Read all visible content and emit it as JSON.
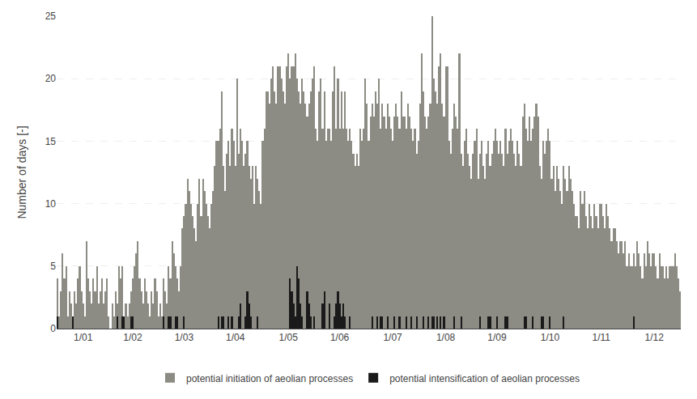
{
  "chart_data": {
    "type": "bar",
    "ylabel": "Number of days [-]",
    "ylim": [
      0,
      25
    ],
    "yticks": [
      0,
      5,
      10,
      15,
      20,
      25
    ],
    "grid": true,
    "legend": "bottom",
    "categories": [
      null,
      null,
      null,
      null,
      null,
      null,
      null,
      null,
      null,
      null,
      null,
      null,
      null,
      null,
      null,
      "1/01",
      null,
      null,
      null,
      null,
      null,
      null,
      null,
      null,
      null,
      null,
      null,
      null,
      null,
      null,
      null,
      null,
      null,
      null,
      null,
      null,
      null,
      null,
      null,
      null,
      null,
      null,
      null,
      null,
      "1/02",
      null,
      null,
      null,
      null,
      null,
      null,
      null,
      null,
      null,
      null,
      null,
      null,
      null,
      null,
      null,
      null,
      null,
      null,
      null,
      null,
      null,
      null,
      null,
      null,
      null,
      null,
      null,
      null,
      null,
      "1/03",
      null,
      null,
      null,
      null,
      null,
      null,
      null,
      null,
      null,
      null,
      null,
      null,
      null,
      null,
      null,
      null,
      null,
      null,
      null,
      null,
      null,
      null,
      null,
      null,
      null,
      null,
      null,
      null,
      null,
      "1/04",
      null,
      null,
      null,
      null,
      null,
      null,
      null,
      null,
      null,
      null,
      null,
      null,
      null,
      null,
      null,
      null,
      null,
      null,
      null,
      null,
      null,
      null,
      null,
      null,
      null,
      null,
      null,
      null,
      null,
      null,
      "1/05",
      null,
      null,
      null,
      null,
      null,
      null,
      null,
      null,
      null,
      null,
      null,
      null,
      null,
      null,
      null,
      null,
      null,
      null,
      null,
      null,
      null,
      null,
      null,
      null,
      null,
      null,
      null,
      null,
      null,
      "1/06",
      null,
      null,
      null,
      null,
      null,
      null,
      null,
      null,
      null,
      null,
      null,
      null,
      null,
      null,
      null,
      null,
      null,
      null,
      null,
      null,
      null,
      null,
      null,
      null,
      null,
      null,
      null,
      null,
      null,
      null,
      "1/07",
      null,
      null,
      null,
      null,
      null,
      null,
      null,
      null,
      null,
      null,
      null,
      null,
      null,
      null,
      null,
      null,
      null,
      null,
      null,
      null,
      null,
      null,
      null,
      null,
      null,
      null,
      null,
      null,
      null,
      null,
      "1/08",
      null,
      null,
      null,
      null,
      null,
      null,
      null,
      null,
      null,
      null,
      null,
      null,
      null,
      null,
      null,
      null,
      null,
      null,
      null,
      null,
      null,
      null,
      null,
      null,
      null,
      null,
      null,
      null,
      null,
      "1/09",
      null,
      null,
      null,
      null,
      null,
      null,
      null,
      null,
      null,
      null,
      null,
      null,
      null,
      null,
      null,
      null,
      null,
      null,
      null,
      null,
      null,
      null,
      null,
      null,
      null,
      null,
      null,
      null,
      null,
      null,
      "1/10",
      null,
      null,
      null,
      null,
      null,
      null,
      null,
      null,
      null,
      null,
      null,
      null,
      null,
      null,
      null,
      null,
      null,
      null,
      null,
      null,
      null,
      null,
      null,
      null,
      null,
      null,
      null,
      null,
      null,
      "1/11",
      null,
      null,
      null,
      null,
      null,
      null,
      null,
      null,
      null,
      null,
      null,
      null,
      null,
      null,
      null,
      null,
      null,
      null,
      null,
      null,
      null,
      null,
      null,
      null,
      null,
      null,
      null,
      null,
      null,
      null,
      "1/12",
      null,
      null,
      null,
      null,
      null,
      null,
      null,
      null,
      null,
      null,
      null,
      null,
      null,
      null,
      null
    ],
    "series": [
      {
        "name": "potential initiation of aeolian processes",
        "color": "#8c8c84",
        "values": [
          4,
          1,
          3,
          6,
          4,
          5,
          1,
          3,
          2,
          1,
          3,
          2,
          4,
          5,
          3,
          2,
          1,
          7,
          4,
          3,
          2,
          4,
          3,
          5,
          2,
          3,
          4,
          2,
          3,
          4,
          1,
          0,
          2,
          1,
          3,
          2,
          5,
          4,
          5,
          1,
          2,
          1,
          2,
          3,
          4,
          5,
          6,
          7,
          4,
          3,
          2,
          4,
          3,
          2,
          1,
          3,
          2,
          4,
          3,
          1,
          2,
          1,
          4,
          3,
          2,
          5,
          4,
          7,
          6,
          5,
          4,
          3,
          5,
          8,
          9,
          10,
          12,
          11,
          10,
          9,
          8,
          7,
          10,
          12,
          9,
          12,
          11,
          10,
          9,
          8,
          10,
          11,
          13,
          15,
          15,
          16,
          19,
          13,
          11,
          14,
          15,
          13,
          16,
          15,
          13,
          20,
          14,
          16,
          15,
          13,
          14,
          15,
          13,
          12,
          13,
          10,
          13,
          12,
          11,
          10,
          15,
          16,
          19,
          19,
          18,
          20,
          21,
          19,
          18,
          21,
          21,
          20,
          19,
          18,
          21,
          22,
          20,
          21,
          21,
          22,
          20,
          19,
          18,
          20,
          19,
          18,
          17,
          18,
          19,
          20,
          21,
          16,
          15,
          19,
          20,
          16,
          19,
          15,
          16,
          16,
          15,
          19,
          21,
          16,
          20,
          16,
          19,
          16,
          19,
          16,
          15,
          16,
          15,
          14,
          13,
          14,
          13,
          16,
          15,
          16,
          20,
          18,
          15,
          17,
          18,
          17,
          19,
          18,
          20,
          16,
          18,
          17,
          16,
          18,
          17,
          16,
          15,
          17,
          18,
          17,
          16,
          19,
          17,
          17,
          16,
          18,
          17,
          16,
          15,
          16,
          14,
          15,
          18,
          22,
          19,
          17,
          16,
          17,
          18,
          25,
          20,
          19,
          18,
          21,
          22,
          18,
          17,
          21,
          21,
          15,
          14,
          16,
          18,
          17,
          16,
          22,
          14,
          13,
          15,
          16,
          14,
          13,
          12,
          14,
          15,
          16,
          12,
          14,
          15,
          13,
          12,
          14,
          15,
          13,
          14,
          15,
          16,
          15,
          14,
          15,
          14,
          13,
          16,
          14,
          15,
          16,
          15,
          14,
          13,
          15,
          14,
          13,
          17,
          18,
          16,
          15,
          17,
          15,
          16,
          17,
          18,
          17,
          13,
          12,
          15,
          14,
          15,
          16,
          15,
          12,
          13,
          11,
          13,
          12,
          11,
          10,
          13,
          12,
          11,
          13,
          12,
          11,
          10,
          9,
          9,
          8,
          11,
          10,
          11,
          9,
          8,
          10,
          9,
          8,
          10,
          9,
          8,
          10,
          10,
          9,
          8,
          10,
          9,
          8,
          7,
          8,
          8,
          7,
          6,
          7,
          7,
          6,
          7,
          5,
          6,
          5,
          5,
          6,
          5,
          7,
          6,
          5,
          4,
          6,
          5,
          7,
          6,
          5,
          6,
          6,
          5,
          4,
          6,
          5,
          5,
          4,
          5,
          4,
          5,
          5,
          5,
          6,
          5,
          4,
          3
        ]
      },
      {
        "name": "potential intensification of aeolian processes",
        "color": "#1a1a1a",
        "values": [
          1,
          0,
          0,
          0,
          0,
          0,
          0,
          0,
          0,
          1,
          0,
          0,
          0,
          0,
          0,
          0,
          0,
          0,
          0,
          0,
          0,
          0,
          0,
          0,
          0,
          0,
          0,
          0,
          0,
          0,
          0,
          0,
          0,
          0,
          0,
          1,
          0,
          0,
          1,
          1,
          0,
          0,
          0,
          1,
          1,
          0,
          0,
          0,
          0,
          0,
          0,
          0,
          0,
          0,
          0,
          0,
          0,
          0,
          0,
          0,
          0,
          0,
          1,
          0,
          0,
          1,
          1,
          0,
          0,
          1,
          1,
          0,
          0,
          0,
          1,
          0,
          0,
          0,
          0,
          0,
          0,
          0,
          0,
          0,
          0,
          0,
          0,
          0,
          0,
          0,
          0,
          0,
          0,
          0,
          1,
          0,
          1,
          1,
          0,
          0,
          1,
          0,
          1,
          0,
          0,
          0,
          1,
          2,
          0,
          0,
          1,
          3,
          2,
          1,
          0,
          0,
          0,
          1,
          0,
          0,
          0,
          0,
          0,
          0,
          0,
          0,
          0,
          0,
          0,
          0,
          0,
          0,
          0,
          0,
          0,
          0,
          4,
          3,
          2,
          1,
          5,
          4,
          2,
          1,
          0,
          0,
          3,
          2,
          1,
          0,
          1,
          0,
          0,
          0,
          0,
          2,
          3,
          0,
          0,
          2,
          0,
          0,
          1,
          2,
          3,
          2,
          1,
          2,
          1,
          0,
          0,
          1,
          0,
          0,
          0,
          0,
          0,
          0,
          0,
          0,
          0,
          0,
          0,
          0,
          1,
          0,
          0,
          1,
          0,
          1,
          1,
          0,
          0,
          1,
          0,
          0,
          0,
          1,
          0,
          0,
          1,
          0,
          0,
          0,
          1,
          0,
          0,
          1,
          0,
          0,
          1,
          0,
          0,
          0,
          1,
          0,
          0,
          1,
          0,
          1,
          1,
          0,
          1,
          0,
          1,
          0,
          1,
          0,
          0,
          0,
          0,
          0,
          1,
          0,
          0,
          0,
          1,
          0,
          0,
          0,
          0,
          0,
          0,
          0,
          0,
          0,
          0,
          1,
          0,
          0,
          0,
          0,
          1,
          1,
          0,
          0,
          0,
          1,
          0,
          0,
          0,
          0,
          1,
          1,
          0,
          0,
          0,
          0,
          0,
          0,
          0,
          0,
          0,
          1,
          1,
          0,
          0,
          0,
          1,
          0,
          0,
          0,
          0,
          1,
          1,
          0,
          0,
          0,
          1,
          0,
          0,
          0,
          0,
          0,
          0,
          0,
          1,
          0,
          0,
          0,
          0,
          0,
          0,
          0,
          0,
          0,
          0,
          0,
          0,
          0,
          0,
          0,
          0,
          0,
          0,
          0,
          0,
          0,
          0,
          0,
          0,
          0,
          0,
          0,
          0,
          0,
          0,
          0,
          0,
          0,
          0,
          0,
          0,
          0,
          0,
          0,
          0,
          1,
          0,
          0,
          0,
          0,
          0,
          0,
          0,
          0,
          0,
          0,
          0,
          0,
          0,
          0,
          0,
          0,
          0,
          0,
          0,
          0,
          0,
          0,
          0,
          0,
          0,
          0,
          0
        ]
      }
    ]
  }
}
